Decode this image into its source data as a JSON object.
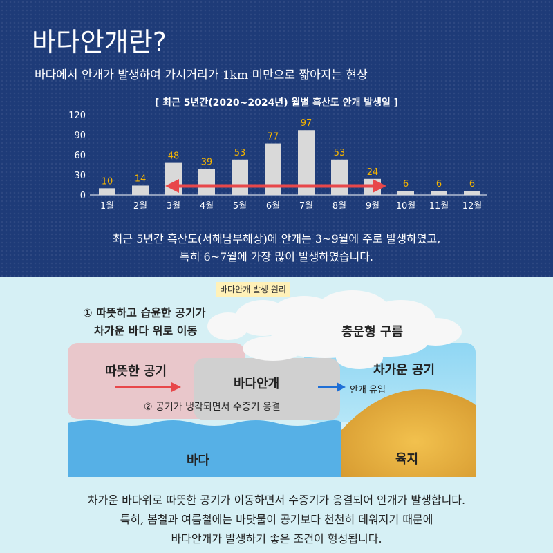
{
  "header": {
    "title": "바다안개란?",
    "subtitle": "바다에서 안개가 발생하여 가시거리가 1km 미만으로 짧아지는 현상"
  },
  "chart_title": "[ 최근 5년간(2020~2024년) 월별 흑산도 안개 발생일 ]",
  "chart_data": {
    "type": "bar",
    "title": "[ 최근 5년간(2020~2024년) 월별 흑산도 안개 발생일 ]",
    "categories": [
      "1월",
      "2월",
      "3월",
      "4월",
      "5월",
      "6월",
      "7월",
      "8월",
      "9월",
      "10월",
      "11월",
      "12월"
    ],
    "values": [
      10,
      14,
      48,
      39,
      53,
      77,
      97,
      53,
      24,
      6,
      6,
      6
    ],
    "yticks": [
      "0",
      "30",
      "60",
      "90",
      "120"
    ],
    "ylim": [
      0,
      120
    ],
    "grid": false,
    "colors": {
      "bar": "#d9d9d9",
      "value_label": "#f5b400",
      "arrow": "#e8474a",
      "axis_text": "#ffffff"
    },
    "annotation": {
      "type": "double-arrow",
      "from": "3월",
      "to": "9월"
    }
  },
  "summary": {
    "line1": "최근 5년간 흑산도(서해남부해상)에 안개는 3~9월에 주로 발생하였고,",
    "line2": "특히 6~7월에 가장 많이 발생하였습니다."
  },
  "diagram": {
    "tag": "바다안개 발생 원리",
    "step1_line1": "① 따뜻하고 습윤한 공기가",
    "step1_line2": "차가운 바다 위로 이동",
    "warm_air": "따뜻한 공기",
    "sea_fog": "바다안개",
    "cold_air": "차가운 공기",
    "fog_inflow": "안개 유입",
    "stratus": "층운형 구름",
    "step2": "② 공기가 냉각되면서 수증기 응결",
    "sea": "바다",
    "land": "육지",
    "colors": {
      "warm": "#e8c4c8",
      "fog": "#d3d3d3",
      "cold": "#9fdcf2",
      "sea": "#54afe6",
      "land": "#dba23a",
      "red_arrow": "#e8474a",
      "blue_arrow": "#1f6fd6"
    }
  },
  "caption": {
    "line1": "차가운 바다위로 따뜻한 공기가 이동하면서 수증기가 응결되어 안개가 발생합니다.",
    "line2": "특히, 봄철과 여름철에는 바닷물이 공기보다 천천히 데워지기 때문에",
    "line3": "바다안개가 발생하기 좋은 조건이 형성됩니다."
  }
}
